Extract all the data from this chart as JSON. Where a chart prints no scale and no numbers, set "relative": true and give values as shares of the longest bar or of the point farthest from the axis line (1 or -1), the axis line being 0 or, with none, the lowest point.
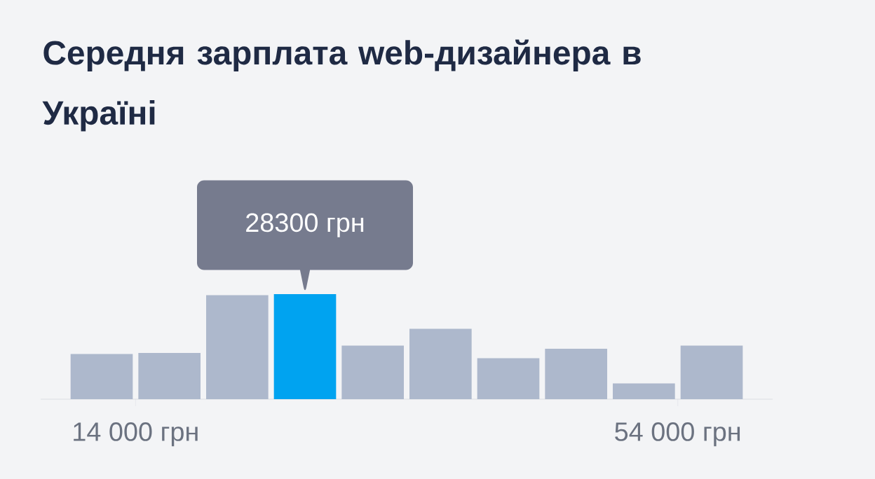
{
  "chart_data": {
    "type": "bar",
    "title": "Середня зарплата web-дизайнера в Україні",
    "x": [
      11500,
      16500,
      21500,
      26500,
      31500,
      36500,
      41500,
      46500,
      51500,
      56500
    ],
    "values": [
      0.43,
      0.44,
      0.99,
      1,
      0.51,
      0.67,
      0.39,
      0.48,
      0.15,
      0.51
    ],
    "colors": [
      "#adb8cc",
      "#adb8cc",
      "#adb8cc",
      "#00a3f0",
      "#adb8cc",
      "#adb8cc",
      "#adb8cc",
      "#adb8cc",
      "#adb8cc",
      "#adb8cc"
    ],
    "relative": true,
    "xlim": [
      7000,
      61000
    ],
    "xticks": [
      {
        "value": 14000,
        "label": "14 000 грн"
      },
      {
        "value": 54000,
        "label": "54 000 грн"
      }
    ],
    "annotations": [
      "28300 грн"
    ]
  }
}
